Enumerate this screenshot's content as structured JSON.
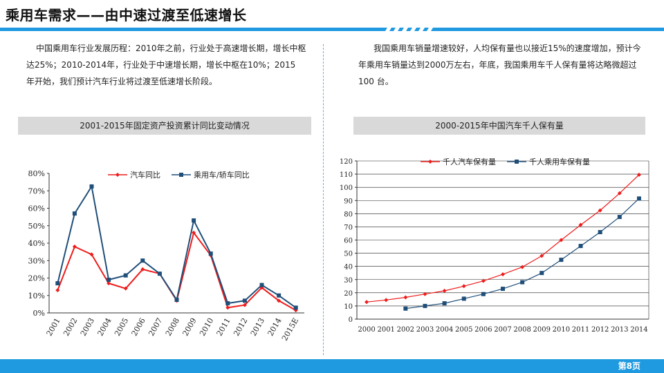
{
  "slide": {
    "title": "乘用车需求——由中速过渡至低速增长",
    "page_number": "第8页",
    "accent_color": "#1f9ae0"
  },
  "paragraphs": {
    "left": "中国乘用车行业发展历程：2010年之前，行业处于高速增长期，增长中枢达25%；2010-2014年，行业处于中速增长期，增长中枢在10%；2015 年开始，我们预计汽车行业将过渡至低速增长阶段。",
    "right": "我国乘用车销量增速较好，人均保有量也以接近15%的速度增加，预计今年乘用车销量达到2000万左右，年底，我国乘用车千人保有量将达略微超过100 台。"
  },
  "captions": {
    "left": "2001-2015年固定资产投资累计同比变动情况",
    "right": "2000-2015年中国汽车千人保有量"
  },
  "chart_data": [
    {
      "type": "line",
      "title": "2001-2015年固定资产投资累计同比变动情况",
      "categories": [
        "2001",
        "2002",
        "2003",
        "2004",
        "2005",
        "2006",
        "2007",
        "2008",
        "2009",
        "2010",
        "2011",
        "2012",
        "2013",
        "2014",
        "2015E"
      ],
      "ylim": [
        0,
        80
      ],
      "yticks": [
        "0%",
        "10%",
        "20%",
        "30%",
        "40%",
        "50%",
        "60%",
        "70%",
        "80%"
      ],
      "legend_position": "top",
      "grid": false,
      "series": [
        {
          "name": "汽车同比",
          "color": "#ee1c1c",
          "marker": "diamond",
          "values": [
            13,
            38,
            33.5,
            17,
            14,
            25,
            22.5,
            7,
            46,
            33,
            3,
            4.5,
            14.5,
            7,
            1.5
          ]
        },
        {
          "name": "乘用车/轿车同比",
          "color": "#1f4e79",
          "marker": "square",
          "values": [
            17,
            57,
            72.5,
            19,
            21.5,
            30,
            22.5,
            7.5,
            53,
            34,
            5.5,
            7,
            16,
            10,
            3
          ]
        }
      ]
    },
    {
      "type": "line",
      "title": "2000-2015年中国汽车千人保有量",
      "categories": [
        "2000",
        "2001",
        "2002",
        "2003",
        "2004",
        "2005",
        "2006",
        "2007",
        "2008",
        "2009",
        "2010",
        "2011",
        "2012",
        "2013",
        "2014"
      ],
      "ylim": [
        0,
        120
      ],
      "yticks": [
        "0",
        "10",
        "20",
        "30",
        "40",
        "50",
        "60",
        "70",
        "80",
        "90",
        "100",
        "110",
        "120"
      ],
      "legend_position": "top",
      "grid": true,
      "series": [
        {
          "name": "千人汽车保有量",
          "color": "#ee1c1c",
          "marker": "diamond",
          "values": [
            13,
            14.5,
            16.5,
            19,
            21.5,
            25,
            29,
            34,
            39.5,
            48,
            60,
            71.5,
            82.5,
            95.5,
            109.5
          ]
        },
        {
          "name": "千人乘用车保有量",
          "color": "#1f4e79",
          "marker": "square",
          "values": [
            null,
            null,
            8,
            10,
            12,
            15.5,
            19,
            23,
            28,
            35,
            45,
            55.5,
            66,
            77.5,
            91.5
          ]
        }
      ]
    }
  ]
}
